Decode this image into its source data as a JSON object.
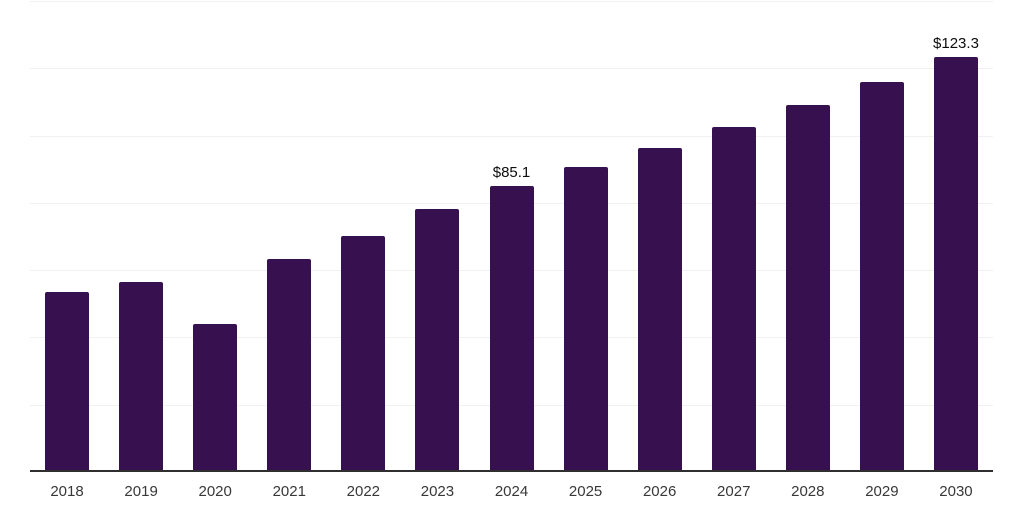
{
  "chart_data": {
    "type": "bar",
    "title": "",
    "xlabel": "",
    "ylabel": "",
    "categories": [
      "2018",
      "2019",
      "2020",
      "2021",
      "2022",
      "2023",
      "2024",
      "2025",
      "2026",
      "2027",
      "2028",
      "2029",
      "2030"
    ],
    "values": [
      53.5,
      56.6,
      44.0,
      63.4,
      70.0,
      78.3,
      85.1,
      90.5,
      96.3,
      102.4,
      109.0,
      115.9,
      123.3
    ],
    "data_labels": [
      "",
      "",
      "",
      "",
      "",
      "",
      "$85.1",
      "",
      "",
      "",
      "",
      "",
      "$123.3"
    ],
    "ylim": [
      0,
      140.25
    ],
    "gridline_step": 20,
    "grid": "horizontal-only",
    "y_tick_labels": "none",
    "legend": "none",
    "colors": {
      "bar": "#37114f",
      "axis_line": "#2f2f2f",
      "gridline": "#f1f1f3",
      "tick_label": "#383838",
      "value_label": "#0d0d0d",
      "background": "#ffffff"
    }
  }
}
